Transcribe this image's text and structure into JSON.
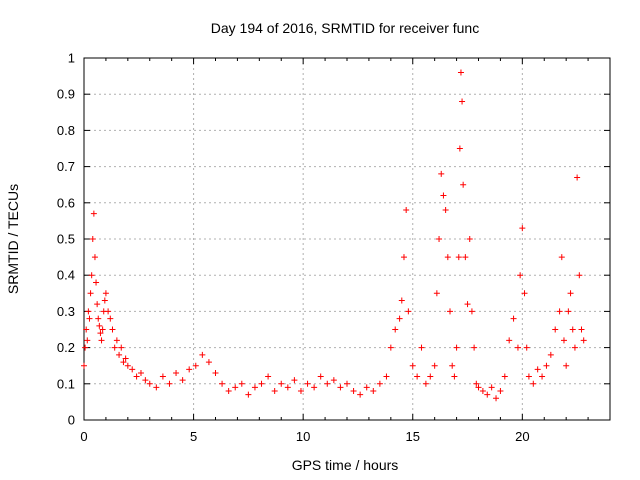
{
  "chart_data": {
    "type": "scatter",
    "title": "Day 194 of 2016, SRMTID for receiver func",
    "xlabel": "GPS time / hours",
    "ylabel": "SRMTID / TECUs",
    "xlim": [
      0,
      24
    ],
    "ylim": [
      0,
      1
    ],
    "xticks": [
      0,
      5,
      10,
      15,
      20
    ],
    "yticks": [
      0,
      0.1,
      0.2,
      0.3,
      0.4,
      0.5,
      0.6,
      0.7,
      0.8,
      0.9,
      1
    ],
    "xtick_labels": [
      "0",
      "5",
      "10",
      "15",
      "20"
    ],
    "ytick_labels": [
      "0",
      "0.1",
      "0.2",
      "0.3",
      "0.4",
      "0.5",
      "0.6",
      "0.7",
      "0.8",
      "0.9",
      "1"
    ],
    "grid": true,
    "marker": "+",
    "color": "#ff0000",
    "series": [
      {
        "name": "SRMTID",
        "x": [
          0.0,
          0.05,
          0.1,
          0.15,
          0.2,
          0.25,
          0.3,
          0.35,
          0.4,
          0.45,
          0.5,
          0.55,
          0.6,
          0.65,
          0.7,
          0.75,
          0.8,
          0.85,
          0.9,
          0.95,
          1.0,
          1.1,
          1.2,
          1.3,
          1.4,
          1.5,
          1.6,
          1.7,
          1.8,
          1.9,
          2.0,
          2.2,
          2.4,
          2.6,
          2.8,
          3.0,
          3.3,
          3.6,
          3.9,
          4.2,
          4.5,
          4.8,
          5.1,
          5.4,
          5.7,
          6.0,
          6.3,
          6.6,
          6.9,
          7.2,
          7.5,
          7.8,
          8.1,
          8.4,
          8.7,
          9.0,
          9.3,
          9.6,
          9.9,
          10.2,
          10.5,
          10.8,
          11.1,
          11.4,
          11.7,
          12.0,
          12.3,
          12.6,
          12.9,
          13.2,
          13.5,
          13.8,
          14.0,
          14.2,
          14.4,
          14.5,
          14.6,
          14.7,
          14.8,
          15.0,
          15.2,
          15.4,
          15.6,
          15.8,
          16.0,
          16.1,
          16.2,
          16.3,
          16.4,
          16.5,
          16.6,
          16.7,
          16.8,
          16.9,
          17.0,
          17.1,
          17.15,
          17.2,
          17.25,
          17.3,
          17.4,
          17.5,
          17.6,
          17.7,
          17.8,
          17.9,
          18.0,
          18.2,
          18.4,
          18.6,
          18.8,
          19.0,
          19.2,
          19.4,
          19.6,
          19.8,
          19.9,
          20.0,
          20.1,
          20.2,
          20.3,
          20.5,
          20.7,
          20.9,
          21.1,
          21.3,
          21.5,
          21.7,
          21.8,
          21.9,
          22.0,
          22.1,
          22.2,
          22.3,
          22.4,
          22.5,
          22.6,
          22.7,
          22.8
        ],
        "y": [
          0.15,
          0.2,
          0.25,
          0.22,
          0.3,
          0.28,
          0.35,
          0.4,
          0.5,
          0.57,
          0.45,
          0.38,
          0.32,
          0.28,
          0.26,
          0.24,
          0.22,
          0.25,
          0.3,
          0.33,
          0.35,
          0.3,
          0.28,
          0.25,
          0.2,
          0.22,
          0.18,
          0.2,
          0.16,
          0.17,
          0.15,
          0.14,
          0.12,
          0.13,
          0.11,
          0.1,
          0.09,
          0.12,
          0.1,
          0.13,
          0.11,
          0.14,
          0.15,
          0.18,
          0.16,
          0.13,
          0.1,
          0.08,
          0.09,
          0.1,
          0.07,
          0.09,
          0.1,
          0.12,
          0.08,
          0.1,
          0.09,
          0.11,
          0.08,
          0.1,
          0.09,
          0.12,
          0.1,
          0.11,
          0.09,
          0.1,
          0.08,
          0.07,
          0.09,
          0.08,
          0.1,
          0.12,
          0.2,
          0.25,
          0.28,
          0.33,
          0.45,
          0.58,
          0.3,
          0.15,
          0.12,
          0.2,
          0.1,
          0.12,
          0.15,
          0.35,
          0.5,
          0.68,
          0.62,
          0.58,
          0.45,
          0.3,
          0.15,
          0.12,
          0.2,
          0.45,
          0.75,
          0.96,
          0.88,
          0.65,
          0.45,
          0.32,
          0.5,
          0.3,
          0.2,
          0.1,
          0.09,
          0.08,
          0.07,
          0.09,
          0.06,
          0.08,
          0.12,
          0.22,
          0.28,
          0.2,
          0.4,
          0.53,
          0.35,
          0.2,
          0.12,
          0.1,
          0.14,
          0.12,
          0.15,
          0.18,
          0.25,
          0.3,
          0.45,
          0.22,
          0.15,
          0.3,
          0.35,
          0.25,
          0.2,
          0.67,
          0.4,
          0.25,
          0.22
        ]
      }
    ]
  }
}
